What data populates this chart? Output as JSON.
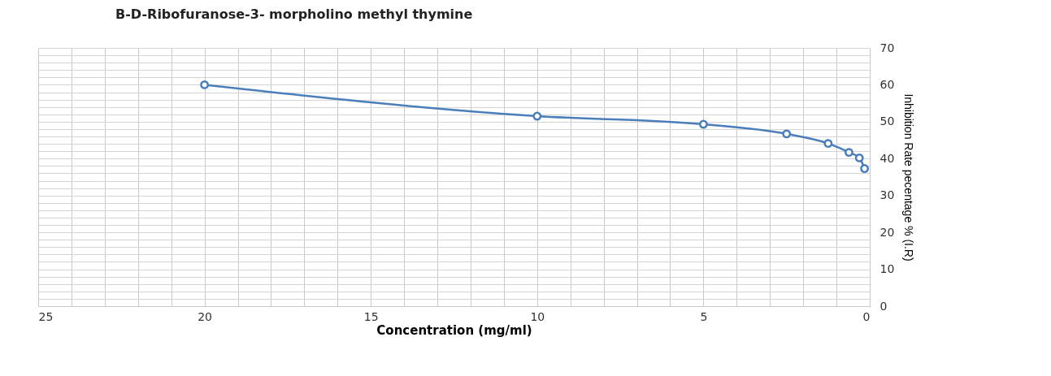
{
  "chart_data": {
    "type": "line",
    "title": "B-D-Ribofuranose-3- morpholino  methyl thymine",
    "xlabel": "Concentration (mg/ml)",
    "ylabel": "Inhibition Rate pecentage % (I.R)",
    "x": [
      20,
      10,
      5,
      2.5,
      1.25,
      0.625,
      0.3125,
      0.15625
    ],
    "series": [
      {
        "color": "#4a7ebb",
        "values": [
          60,
          51.5,
          49.3,
          46.7,
          44.1,
          41.7,
          40.2,
          37.3
        ]
      }
    ],
    "xlim": [
      25,
      0
    ],
    "ylim": [
      0,
      70
    ],
    "xticks": [
      0,
      {
        "value": 1,
        "label": null
      },
      {
        "value": 2,
        "label": null
      },
      {
        "value": 3,
        "label": null
      },
      {
        "value": 4,
        "label": null
      },
      5,
      {
        "value": 6,
        "label": null
      },
      {
        "value": 7,
        "label": null
      },
      {
        "value": 8,
        "label": null
      },
      {
        "value": 9,
        "label": null
      },
      10,
      {
        "value": 11,
        "label": null
      },
      {
        "value": 12,
        "label": null
      },
      {
        "value": 13,
        "label": null
      },
      {
        "value": 14,
        "label": null
      },
      15,
      {
        "value": 16,
        "label": null
      },
      {
        "value": 17,
        "label": null
      },
      {
        "value": 18,
        "label": null
      },
      {
        "value": 19,
        "label": null
      },
      20,
      {
        "value": 21,
        "label": null
      },
      {
        "value": 22,
        "label": null
      },
      {
        "value": 23,
        "label": null
      },
      {
        "value": 24,
        "label": null
      },
      25
    ],
    "yticks": [
      0,
      {
        "value": 2,
        "label": null
      },
      {
        "value": 4,
        "label": null
      },
      {
        "value": 6,
        "label": null
      },
      {
        "value": 8,
        "label": null
      },
      10,
      {
        "value": 12,
        "label": null
      },
      {
        "value": 14,
        "label": null
      },
      {
        "value": 16,
        "label": null
      },
      {
        "value": 18,
        "label": null
      },
      20,
      {
        "value": 22,
        "label": null
      },
      {
        "value": 24,
        "label": null
      },
      {
        "value": 26,
        "label": null
      },
      {
        "value": 28,
        "label": null
      },
      30,
      {
        "value": 32,
        "label": null
      },
      {
        "value": 34,
        "label": null
      },
      {
        "value": 36,
        "label": null
      },
      {
        "value": 38,
        "label": null
      },
      40,
      {
        "value": 42,
        "label": null
      },
      {
        "value": 44,
        "label": null
      },
      {
        "value": 46,
        "label": null
      },
      {
        "value": 48,
        "label": null
      },
      50,
      {
        "value": 52,
        "label": null
      },
      {
        "value": 54,
        "label": null
      },
      {
        "value": 56,
        "label": null
      },
      {
        "value": 58,
        "label": null
      },
      60,
      {
        "value": 62,
        "label": null
      },
      {
        "value": 64,
        "label": null
      },
      {
        "value": 66,
        "label": null
      },
      {
        "value": 68,
        "label": null
      },
      70
    ],
    "grid": true,
    "marker": "circle",
    "line_style": "solid"
  }
}
